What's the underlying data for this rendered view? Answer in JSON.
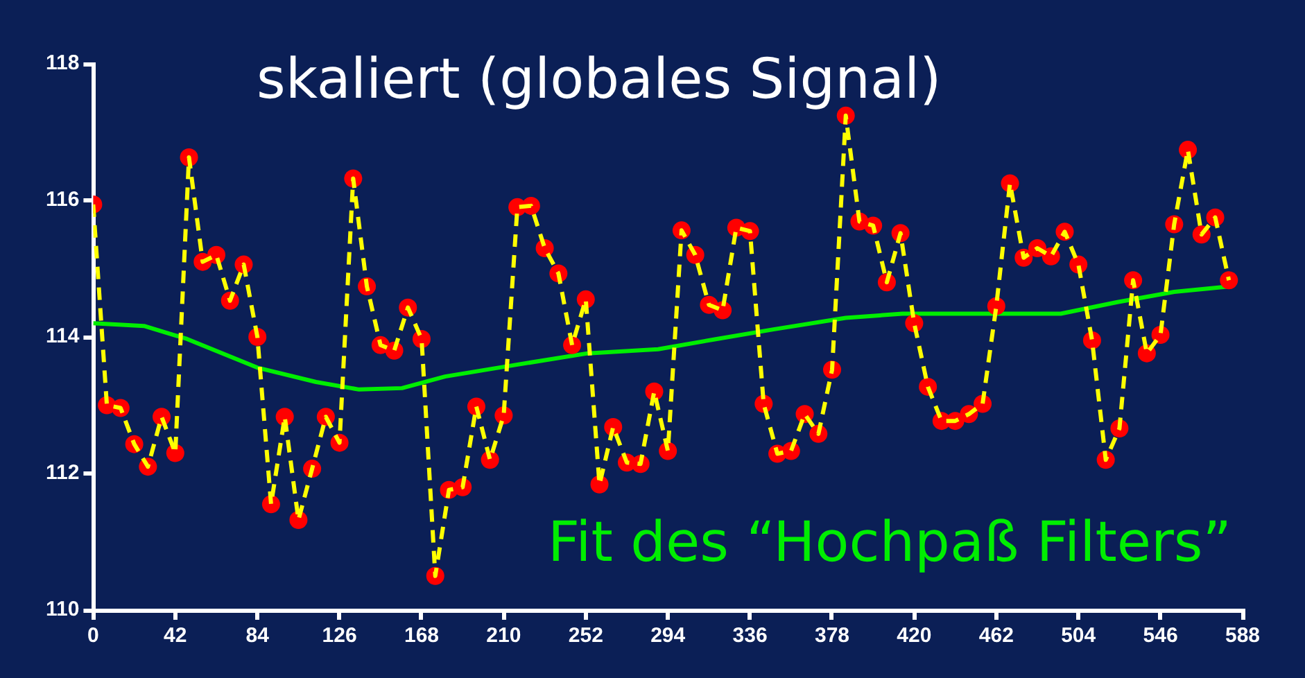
{
  "chart_data": {
    "type": "line",
    "title": "skaliert (globales Signal)",
    "xlim": [
      0,
      588
    ],
    "xticks": [
      0,
      42,
      84,
      126,
      168,
      210,
      252,
      294,
      336,
      378,
      420,
      462,
      504,
      546,
      588
    ],
    "ylim": [
      110,
      118
    ],
    "yticks": [
      110,
      112,
      114,
      116,
      118
    ],
    "grid": false,
    "legend": false,
    "series": [
      {
        "color": "#ffff00",
        "line_style": "dashed",
        "marker": "none",
        "x": [
          0,
          7,
          14,
          21,
          28,
          35,
          42,
          49,
          56,
          63,
          70,
          77,
          84,
          91,
          98,
          105,
          112,
          119,
          126,
          133,
          140,
          147,
          154,
          161,
          168,
          175,
          182,
          189,
          196,
          203,
          210,
          217,
          224,
          231,
          238,
          245,
          252,
          259,
          266,
          273,
          280,
          287,
          294,
          301,
          308,
          315,
          322,
          329,
          336,
          343,
          350,
          357,
          364,
          371,
          378,
          385,
          392,
          399,
          406,
          413,
          420,
          427,
          434,
          441,
          448,
          455,
          462,
          469,
          476,
          483,
          490,
          497,
          504,
          511,
          518,
          525,
          532,
          539,
          546,
          553,
          560,
          567,
          574,
          581
        ],
        "values": [
          115.94,
          113.0,
          112.96,
          112.43,
          112.1,
          112.83,
          112.3,
          116.63,
          115.1,
          115.2,
          114.53,
          115.06,
          114.0,
          111.55,
          112.83,
          111.32,
          112.07,
          112.83,
          112.45,
          116.32,
          114.74,
          113.88,
          113.8,
          114.43,
          113.97,
          110.5,
          111.76,
          111.8,
          112.98,
          112.2,
          112.85,
          115.9,
          115.92,
          115.3,
          114.93,
          113.88,
          114.55,
          111.84,
          112.68,
          112.16,
          112.14,
          113.2,
          112.33,
          115.56,
          115.2,
          114.47,
          114.39,
          115.6,
          115.55,
          113.02,
          112.29,
          112.33,
          112.87,
          112.58,
          113.52,
          117.24,
          115.69,
          115.63,
          114.8,
          115.52,
          114.2,
          113.27,
          112.77,
          112.77,
          112.87,
          113.02,
          114.45,
          116.25,
          115.16,
          115.3,
          115.18,
          115.54,
          115.06,
          113.95,
          112.2,
          112.66,
          114.83,
          113.76,
          114.03,
          115.65,
          116.74,
          115.5,
          115.75,
          114.83
        ]
      },
      {
        "type": "scatter",
        "color": "#ff0000",
        "marker": "circle",
        "x": [
          0,
          7,
          14,
          21,
          28,
          35,
          42,
          49,
          56,
          63,
          70,
          77,
          84,
          91,
          98,
          105,
          112,
          119,
          126,
          133,
          140,
          147,
          154,
          161,
          168,
          175,
          182,
          189,
          196,
          203,
          210,
          217,
          224,
          231,
          238,
          245,
          252,
          259,
          266,
          273,
          280,
          287,
          294,
          301,
          308,
          315,
          322,
          329,
          336,
          343,
          350,
          357,
          364,
          371,
          378,
          385,
          392,
          399,
          406,
          413,
          420,
          427,
          434,
          441,
          448,
          455,
          462,
          469,
          476,
          483,
          490,
          497,
          504,
          511,
          518,
          525,
          532,
          539,
          546,
          553,
          560,
          567,
          574,
          581
        ],
        "values": [
          115.94,
          113.0,
          112.96,
          112.43,
          112.1,
          112.83,
          112.3,
          116.63,
          115.1,
          115.2,
          114.53,
          115.06,
          114.0,
          111.55,
          112.83,
          111.32,
          112.07,
          112.83,
          112.45,
          116.32,
          114.74,
          113.88,
          113.8,
          114.43,
          113.97,
          110.5,
          111.76,
          111.8,
          112.98,
          112.2,
          112.85,
          115.9,
          115.92,
          115.3,
          114.93,
          113.88,
          114.55,
          111.84,
          112.68,
          112.16,
          112.14,
          113.2,
          112.33,
          115.56,
          115.2,
          114.47,
          114.39,
          115.6,
          115.55,
          113.02,
          112.29,
          112.33,
          112.87,
          112.58,
          113.52,
          117.24,
          115.69,
          115.63,
          114.8,
          115.52,
          114.2,
          113.27,
          112.77,
          112.77,
          112.87,
          113.02,
          114.45,
          116.25,
          115.16,
          115.3,
          115.18,
          115.54,
          115.06,
          113.95,
          112.2,
          112.66,
          114.83,
          113.76,
          114.03,
          115.65,
          116.74,
          115.5,
          115.75,
          114.83
        ]
      },
      {
        "name": "Fit des “Hochpaß Filters”",
        "color": "#00ee00",
        "line_style": "solid",
        "marker": "none",
        "x": [
          0,
          26,
          48,
          84,
          114,
          136,
          158,
          180,
          216,
          253,
          289,
          319,
          348,
          385,
          414,
          451,
          495,
          524,
          553,
          582
        ],
        "values": [
          114.2,
          114.16,
          113.97,
          113.55,
          113.34,
          113.23,
          113.25,
          113.42,
          113.59,
          113.76,
          113.82,
          113.97,
          114.11,
          114.28,
          114.34,
          114.34,
          114.34,
          114.51,
          114.66,
          114.74
        ]
      }
    ]
  }
}
